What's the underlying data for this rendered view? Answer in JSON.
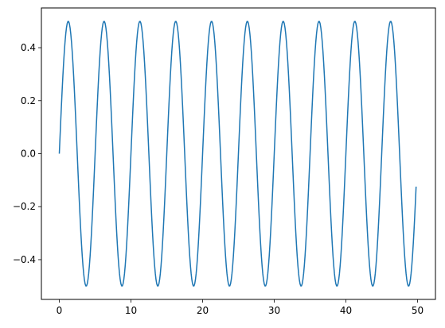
{
  "chart_data": {
    "type": "line",
    "title": "",
    "xlabel": "",
    "ylabel": "",
    "xlim": [
      -2.5,
      52.5
    ],
    "ylim": [
      -0.55,
      0.55
    ],
    "xticks": [
      0,
      10,
      20,
      30,
      40,
      50
    ],
    "xtick_labels": [
      "0",
      "10",
      "20",
      "30",
      "40",
      "50"
    ],
    "yticks": [
      -0.4,
      -0.2,
      0.0,
      0.2,
      0.4
    ],
    "ytick_labels": [
      "−0.4",
      "−0.2",
      "0.0",
      "0.2",
      "0.4"
    ],
    "grid": false,
    "legend": "none",
    "series": [
      {
        "color": "#1f77b4",
        "function": "0.5*sin(2*pi*x/5)",
        "x_start": 0,
        "x_end": 49.8,
        "x_step": 0.1
      }
    ]
  }
}
